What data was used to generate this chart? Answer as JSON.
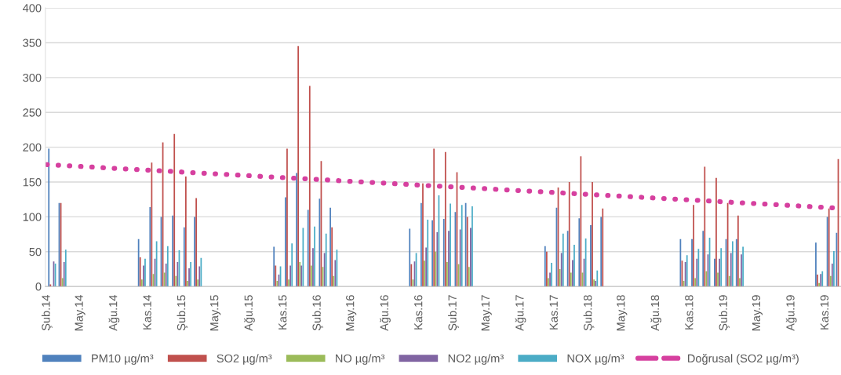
{
  "chart_data": {
    "type": "bar",
    "x": [
      "2014-02-15",
      "2014-03-15",
      "2014-10-15",
      "2014-11-15",
      "2014-12-15",
      "2015-01-15",
      "2015-02-15",
      "2015-03-15",
      "2015-10-15",
      "2015-11-15",
      "2015-12-15",
      "2016-01-15",
      "2016-02-15",
      "2016-03-15",
      "2016-10-15",
      "2016-11-15",
      "2016-12-15",
      "2017-01-15",
      "2017-02-15",
      "2017-03-15",
      "2017-10-15",
      "2017-11-15",
      "2017-12-15",
      "2018-01-15",
      "2018-02-15",
      "2018-03-15",
      "2018-10-15",
      "2018-11-15",
      "2018-12-15",
      "2019-01-15",
      "2019-02-15",
      "2019-03-15",
      "2019-10-15",
      "2019-11-15",
      "2019-12-10"
    ],
    "series": [
      {
        "name": "PM10 µg/m³",
        "color": "#4f81bd",
        "values": [
          198,
          120,
          68,
          114,
          100,
          102,
          85,
          100,
          57,
          128,
          163,
          110,
          126,
          113,
          83,
          120,
          95,
          97,
          107,
          120,
          58,
          113,
          80,
          98,
          88,
          100,
          68,
          68,
          80,
          40,
          68,
          68,
          63,
          100,
          77
        ]
      },
      {
        "name": "SO2 µg/m³",
        "color": "#c0504d",
        "values": [
          3,
          120,
          42,
          178,
          207,
          219,
          158,
          127,
          30,
          198,
          345,
          288,
          180,
          85,
          32,
          148,
          198,
          193,
          164,
          100,
          50,
          142,
          150,
          187,
          150,
          112,
          37,
          117,
          172,
          156,
          120,
          102,
          17,
          112,
          183
        ]
      },
      {
        "name": "NO µg/m³",
        "color": "#9bbb59",
        "values": [
          null,
          12,
          10,
          18,
          20,
          15,
          8,
          10,
          8,
          10,
          35,
          30,
          28,
          15,
          10,
          37,
          50,
          35,
          32,
          28,
          12,
          25,
          20,
          20,
          10,
          null,
          8,
          12,
          22,
          20,
          15,
          12,
          5,
          15,
          null
        ]
      },
      {
        "name": "NO2 µg/m³",
        "color": "#8064a2",
        "values": [
          36,
          35,
          30,
          40,
          33,
          35,
          26,
          29,
          17,
          30,
          30,
          55,
          48,
          38,
          36,
          56,
          78,
          80,
          82,
          84,
          20,
          48,
          38,
          40,
          8,
          null,
          35,
          40,
          46,
          40,
          48,
          46,
          18,
          33,
          null
        ]
      },
      {
        "name": "NOX µg/m³",
        "color": "#4bacc6",
        "values": [
          33,
          53,
          40,
          65,
          58,
          52,
          35,
          41,
          29,
          62,
          84,
          86,
          76,
          53,
          48,
          96,
          131,
          119,
          117,
          115,
          34,
          76,
          60,
          69,
          23,
          null,
          45,
          54,
          70,
          55,
          65,
          57,
          22,
          51,
          null
        ]
      },
      {
        "name": "Doğrusal (SO2 µg/m³)",
        "type": "line",
        "color": "#d6409f",
        "line_style": "dotted",
        "x": [
          "2014-02-01",
          "2019-11-20"
        ],
        "values": [
          175,
          113
        ]
      }
    ],
    "ylim": [
      0,
      400
    ],
    "yticks": [
      0,
      50,
      100,
      150,
      200,
      250,
      300,
      350,
      400
    ],
    "xlim": [
      "2014-01-28",
      "2019-12-13"
    ],
    "xticks": [
      {
        "value": "2014-02",
        "label": "Şub.14"
      },
      {
        "value": "2014-05",
        "label": "May.14"
      },
      {
        "value": "2014-08",
        "label": "Ağu.14"
      },
      {
        "value": "2014-11",
        "label": "Kas.14"
      },
      {
        "value": "2015-02",
        "label": "Şub.15"
      },
      {
        "value": "2015-05",
        "label": "May.15"
      },
      {
        "value": "2015-08",
        "label": "Ağu.15"
      },
      {
        "value": "2015-11",
        "label": "Kas.15"
      },
      {
        "value": "2016-02",
        "label": "Şub.16"
      },
      {
        "value": "2016-05",
        "label": "May.16"
      },
      {
        "value": "2016-08",
        "label": "Ağu.16"
      },
      {
        "value": "2016-11",
        "label": "Kas.16"
      },
      {
        "value": "2017-02",
        "label": "Şub.17"
      },
      {
        "value": "2017-05",
        "label": "May.17"
      },
      {
        "value": "2017-08",
        "label": "Ağu.17"
      },
      {
        "value": "2017-11",
        "label": "Kas.17"
      },
      {
        "value": "2018-02",
        "label": "Şub.18"
      },
      {
        "value": "2018-05",
        "label": "May.18"
      },
      {
        "value": "2018-08",
        "label": "Ağu.18"
      },
      {
        "value": "2018-11",
        "label": "Kas.18"
      },
      {
        "value": "2019-02",
        "label": "Şub.19"
      },
      {
        "value": "2019-05",
        "label": "May.19"
      },
      {
        "value": "2019-08",
        "label": "Ağu.19"
      },
      {
        "value": "2019-11",
        "label": "Kas.19"
      }
    ],
    "grid": "y",
    "legend": "bottom"
  }
}
